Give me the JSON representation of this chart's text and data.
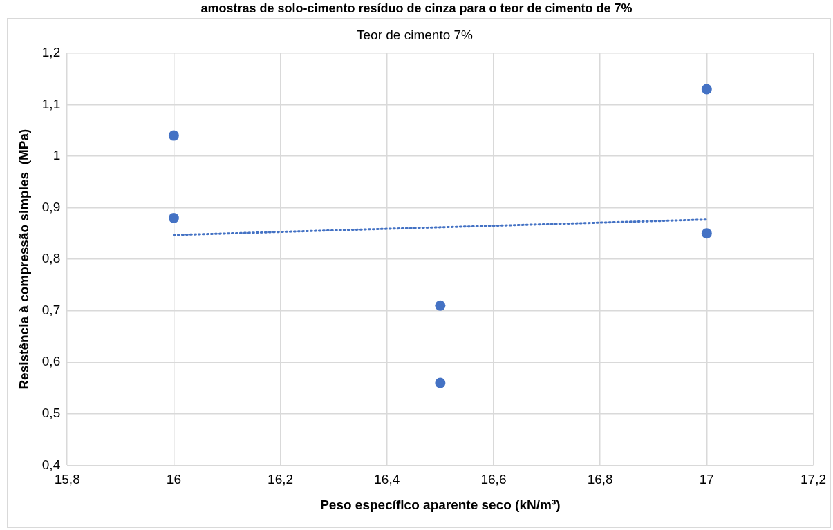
{
  "chart_data": {
    "type": "scatter",
    "title": "Teor de cimento 7%",
    "xlabel": "Peso específico aparente seco (kN/m³)",
    "ylabel": "Resistência à compressão simples  (MPa)",
    "annotations": [
      "amostras de solo-cimento resíduo de cinza para o teor de cimento de 7%"
    ],
    "series": [
      {
        "type": "scatter",
        "color": "#4472c4",
        "marker": "circle",
        "x": [
          16,
          16,
          16.5,
          16.5,
          17,
          17
        ],
        "values": [
          1.04,
          0.88,
          0.71,
          0.56,
          1.13,
          0.85
        ]
      },
      {
        "type": "line",
        "color": "#4472c4",
        "line_style": "dotted",
        "marker": "none",
        "x": [
          16,
          17
        ],
        "values": [
          0.847,
          0.877
        ]
      }
    ],
    "xlim": [
      15.8,
      17.2
    ],
    "xticks": [
      {
        "value": 15.8,
        "label": "15,8"
      },
      16,
      {
        "value": 16.2,
        "label": "16,2"
      },
      {
        "value": 16.4,
        "label": "16,4"
      },
      {
        "value": 16.6,
        "label": "16,6"
      },
      {
        "value": 16.8,
        "label": "16,8"
      },
      17,
      {
        "value": 17.2,
        "label": "17,2"
      }
    ],
    "ylim": [
      0.4,
      1.2
    ],
    "yticks": [
      {
        "value": 0.4,
        "label": "0,4"
      },
      {
        "value": 0.5,
        "label": "0,5"
      },
      {
        "value": 0.6,
        "label": "0,6"
      },
      {
        "value": 0.7,
        "label": "0,7"
      },
      {
        "value": 0.8,
        "label": "0,8"
      },
      {
        "value": 0.9,
        "label": "0,9"
      },
      1,
      {
        "value": 1.1,
        "label": "1,1"
      },
      {
        "value": 1.2,
        "label": "1,2"
      }
    ],
    "grid": true,
    "legend": false
  }
}
